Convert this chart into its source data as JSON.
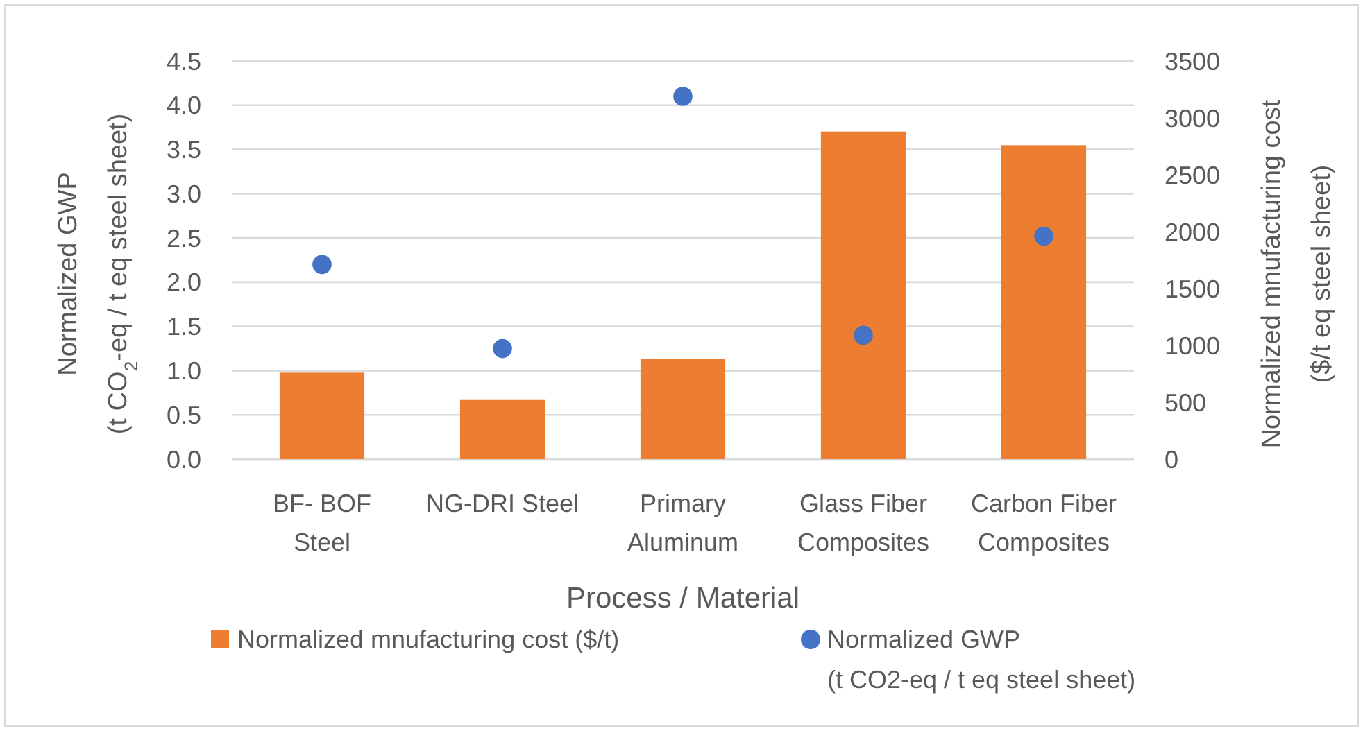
{
  "chart_data": {
    "type": "bar",
    "xlabel": "Process / Material",
    "ylabel": "Normalized GWP\n(t CO$_{2}$-eq / t eq steel sheet)",
    "y2label": "Normalized mnufacturing cost\n($/t eq steel sheet)",
    "categories": [
      "BF- BOF\nSteel",
      "NG-DRI Steel",
      "Primary\nAluminum",
      "Glass Fiber\nComposites",
      "Carbon Fiber\nComposites"
    ],
    "series": [
      {
        "name": "Normalized mnufacturing cost ($/t)",
        "axis": "y2",
        "color": "#ed7d31",
        "values": [
          760,
          520,
          880,
          2880,
          2760
        ]
      },
      {
        "name": "Normalized GWP\n(t CO2-eq / t eq steel sheet)",
        "type": "scatter",
        "axis": "y",
        "color": "#4472c4",
        "marker": "circle",
        "values": [
          2.2,
          1.25,
          4.1,
          1.4,
          2.52
        ]
      }
    ],
    "ylim": [
      0,
      4.5
    ],
    "yticks": [
      {
        "value": 0,
        "label": "0.0"
      },
      0.5,
      {
        "value": 1,
        "label": "1.0"
      },
      1.5,
      {
        "value": 2,
        "label": "2.0"
      },
      2.5,
      {
        "value": 3,
        "label": "3.0"
      },
      3.5,
      {
        "value": 4,
        "label": "4.0"
      },
      4.5
    ],
    "y2lim": [
      0,
      3500
    ],
    "y2ticks": [
      0,
      500,
      1000,
      1500,
      2000,
      2500,
      3000,
      3500
    ],
    "grid": "y",
    "legend": "bottom"
  }
}
